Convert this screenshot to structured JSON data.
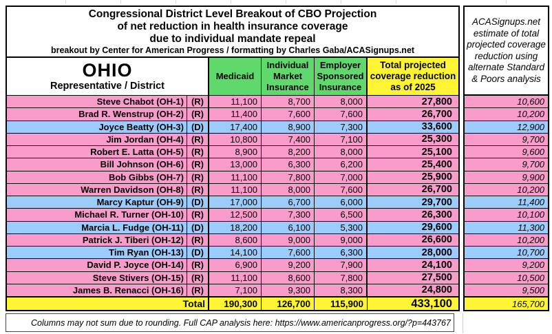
{
  "title": {
    "line1": "Congressional District Level Breakout of CBO Projection",
    "line2": "of net reduction in health insurance coverage",
    "line3": "due to individual mandate repeal",
    "credit": "breakout by Center for American Progress / formatting by Charles Gaba/ACASignups.net"
  },
  "sp_note": "ACASignups.net estimate of total projected coverage reduction using alternate Standard & Poors analysis",
  "state_header": {
    "state": "OHIO",
    "subtitle": "Representative / District"
  },
  "columns": {
    "medicaid": "Medicaid",
    "individual": "Individual Market Insurance",
    "employer": "Employer Sponsored Insurance",
    "total": "Total projected coverage reduction as of 2025"
  },
  "rows": [
    {
      "name": "Steve Chabot (OH-1)",
      "party": "(R)",
      "medicaid": "11,100",
      "individual": "8,700",
      "employer": "8,000",
      "total": "27,800",
      "sp": "10,600"
    },
    {
      "name": "Brad R. Wenstrup (OH-2)",
      "party": "(R)",
      "medicaid": "11,400",
      "individual": "7,600",
      "employer": "7,600",
      "total": "26,700",
      "sp": "10,200"
    },
    {
      "name": "Joyce Beatty (OH-3)",
      "party": "(D)",
      "medicaid": "17,400",
      "individual": "8,900",
      "employer": "7,300",
      "total": "33,600",
      "sp": "12,900"
    },
    {
      "name": "Jim Jordan (OH-4)",
      "party": "(R)",
      "medicaid": "10,800",
      "individual": "7,400",
      "employer": "7,100",
      "total": "25,300",
      "sp": "9,700"
    },
    {
      "name": "Robert E. Latta (OH-5)",
      "party": "(R)",
      "medicaid": "8,900",
      "individual": "8,200",
      "employer": "8,000",
      "total": "25,100",
      "sp": "9,600"
    },
    {
      "name": "Bill Johnson (OH-6)",
      "party": "(R)",
      "medicaid": "13,000",
      "individual": "6,300",
      "employer": "6,200",
      "total": "25,400",
      "sp": "9,700"
    },
    {
      "name": "Bob Gibbs (OH-7)",
      "party": "(R)",
      "medicaid": "11,100",
      "individual": "7,800",
      "employer": "7,000",
      "total": "25,900",
      "sp": "9,900"
    },
    {
      "name": "Warren Davidson (OH-8)",
      "party": "(R)",
      "medicaid": "11,100",
      "individual": "8,000",
      "employer": "7,600",
      "total": "26,700",
      "sp": "10,200"
    },
    {
      "name": "Marcy Kaptur (OH-9)",
      "party": "(D)",
      "medicaid": "17,000",
      "individual": "6,700",
      "employer": "6,000",
      "total": "29,700",
      "sp": "11,400"
    },
    {
      "name": "Michael R. Turner (OH-10)",
      "party": "(R)",
      "medicaid": "12,500",
      "individual": "7,300",
      "employer": "6,500",
      "total": "26,300",
      "sp": "10,100"
    },
    {
      "name": "Marcia L. Fudge (OH-11)",
      "party": "(D)",
      "medicaid": "18,200",
      "individual": "6,100",
      "employer": "5,300",
      "total": "29,600",
      "sp": "11,300"
    },
    {
      "name": "Patrick J. Tiberi (OH-12)",
      "party": "(R)",
      "medicaid": "8,600",
      "individual": "9,000",
      "employer": "9,000",
      "total": "26,600",
      "sp": "10,200"
    },
    {
      "name": "Tim Ryan (OH-13)",
      "party": "(D)",
      "medicaid": "14,100",
      "individual": "7,600",
      "employer": "6,300",
      "total": "28,000",
      "sp": "10,700"
    },
    {
      "name": "David P. Joyce (OH-14)",
      "party": "(R)",
      "medicaid": "6,900",
      "individual": "9,200",
      "employer": "7,900",
      "total": "24,100",
      "sp": "9,200"
    },
    {
      "name": "Steve Stivers (OH-15)",
      "party": "(R)",
      "medicaid": "11,100",
      "individual": "8,600",
      "employer": "7,800",
      "total": "27,500",
      "sp": "10,500"
    },
    {
      "name": "James B. Renacci (OH-16)",
      "party": "(R)",
      "medicaid": "7,100",
      "individual": "9,300",
      "employer": "8,300",
      "total": "24,800",
      "sp": "9,500"
    }
  ],
  "total_row": {
    "label": "Total",
    "medicaid": "190,300",
    "individual": "126,700",
    "employer": "115,900",
    "total": "433,100",
    "sp": "165,700"
  },
  "footer_note": "Columns may not sum due to rounding. Full CAP analysis here: https://www.americanprogress.org/?p=443767",
  "colors": {
    "republican_row": "#FA9CCB",
    "democrat_row": "#9CCCFC",
    "header_green": "#5FD96B",
    "total_yellow": "#FFF433"
  }
}
